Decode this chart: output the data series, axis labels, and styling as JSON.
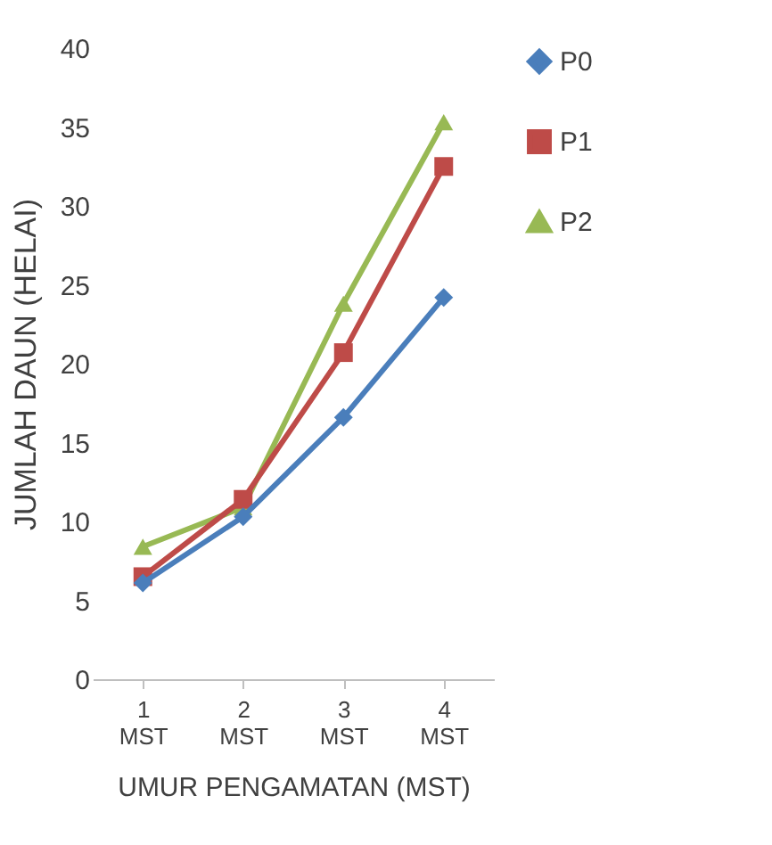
{
  "chart_data": {
    "type": "line",
    "xlabel": "UMUR PENGAMATAN (MST)",
    "ylabel": "JUMLAH DAUN (HELAI)",
    "categories": [
      "1 MST",
      "2 MST",
      "3 MST",
      "4 MST"
    ],
    "series": [
      {
        "name": "P0",
        "color": "#4a7ebb",
        "marker": "diamond",
        "values": [
          6.1,
          10.3,
          16.6,
          24.2
        ]
      },
      {
        "name": "P1",
        "color": "#be4b48",
        "marker": "square",
        "values": [
          6.5,
          11.4,
          20.7,
          32.5
        ]
      },
      {
        "name": "P2",
        "color": "#98b954",
        "marker": "triangle",
        "values": [
          8.4,
          10.9,
          23.8,
          35.3
        ]
      }
    ],
    "ylim": [
      0,
      40
    ],
    "yticks": [
      0,
      5,
      10,
      15,
      20,
      25,
      30,
      35,
      40
    ],
    "grid": false,
    "legend": "right",
    "line_style": "solid"
  }
}
